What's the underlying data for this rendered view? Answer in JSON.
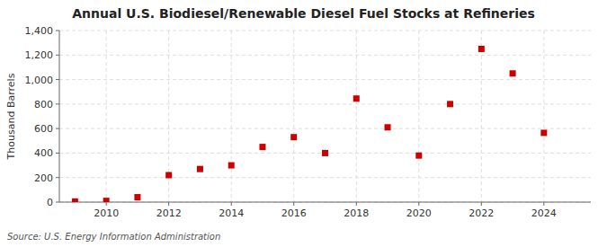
{
  "chart_data": {
    "type": "scatter",
    "title": "Annual U.S. Biodiesel/Renewable Diesel Fuel Stocks at Refineries",
    "ylabel": "Thousand Barrels",
    "source": "Source: U.S. Energy Information Administration",
    "x": [
      2009,
      2010,
      2011,
      2012,
      2013,
      2014,
      2015,
      2016,
      2017,
      2018,
      2019,
      2020,
      2021,
      2022,
      2023,
      2024
    ],
    "values": [
      5,
      10,
      40,
      220,
      270,
      300,
      450,
      530,
      400,
      845,
      610,
      380,
      800,
      1250,
      1050,
      565
    ],
    "color": "#cc0000",
    "marker": "square",
    "xlim": [
      2008.5,
      2025.5
    ],
    "xticks": [
      2010,
      2012,
      2014,
      2016,
      2018,
      2020,
      2022,
      2024
    ],
    "ylim": [
      0,
      1400
    ],
    "yticks": [
      0,
      200,
      400,
      600,
      800,
      {
        "value": 1000,
        "label": "1,000"
      },
      {
        "value": 1200,
        "label": "1,200"
      },
      {
        "value": 1400,
        "label": "1,400"
      }
    ],
    "grid": true
  }
}
